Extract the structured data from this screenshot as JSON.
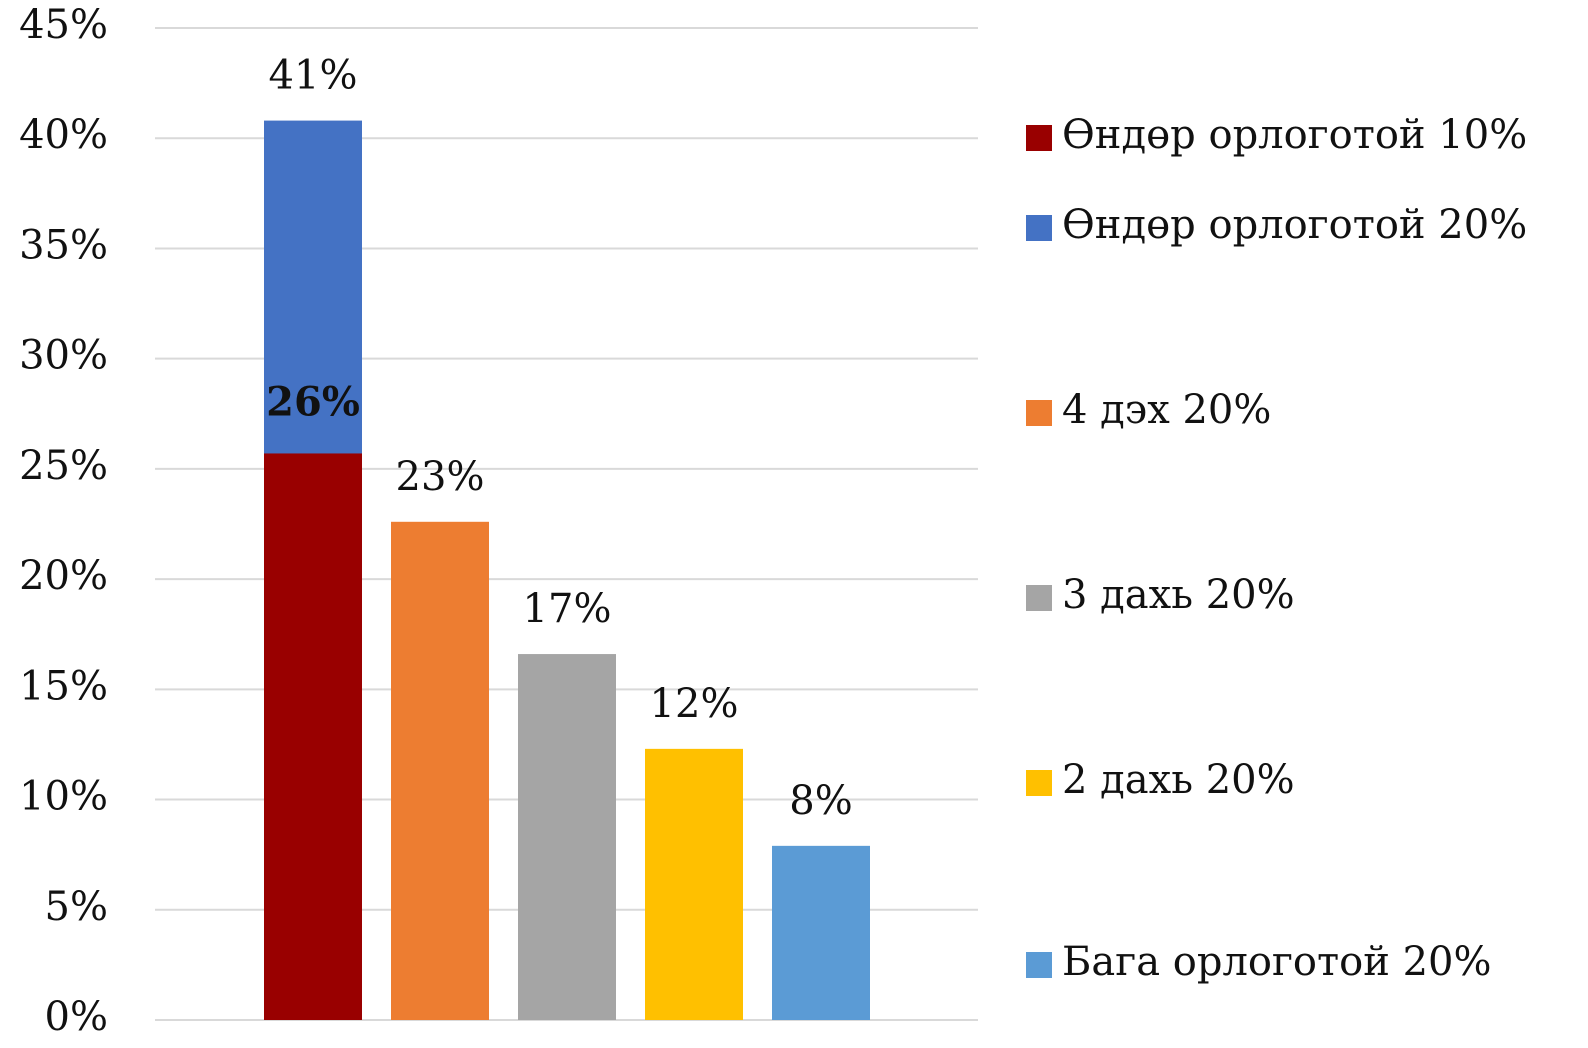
{
  "chart_data": {
    "type": "bar",
    "categories": [
      null,
      null,
      null,
      null,
      null
    ],
    "series": [
      {
        "name": "Өндөр орлоготой 10%",
        "color": "#990000",
        "values": [
          25.7,
          null,
          null,
          null,
          null
        ],
        "value_labels": [
          "26%",
          null,
          null,
          null,
          null
        ]
      },
      {
        "name": "Өндөр орлоготой 20%",
        "color": "#4472c4",
        "values": [
          40.8,
          null,
          null,
          null,
          null
        ],
        "value_labels": [
          "41%",
          null,
          null,
          null,
          null
        ]
      },
      {
        "name": "4 дэх 20%",
        "color": "#ed7d31",
        "values": [
          null,
          22.6,
          null,
          null,
          null
        ],
        "value_labels": [
          null,
          "23%",
          null,
          null,
          null
        ]
      },
      {
        "name": "3 дахь 20%",
        "color": "#a5a5a5",
        "values": [
          null,
          null,
          16.6,
          null,
          null
        ],
        "value_labels": [
          null,
          null,
          "17%",
          null,
          null
        ]
      },
      {
        "name": "2 дахь 20%",
        "color": "#ffc000",
        "values": [
          null,
          null,
          null,
          12.3,
          null
        ],
        "value_labels": [
          null,
          null,
          null,
          "12%",
          null
        ]
      },
      {
        "name": "Бага орлоготой 20%",
        "color": "#5b9bd5",
        "values": [
          null,
          null,
          null,
          null,
          7.9
        ],
        "value_labels": [
          null,
          null,
          null,
          null,
          "8%"
        ]
      }
    ],
    "ylim": [
      0,
      45
    ],
    "yticks": [
      {
        "value": 0,
        "label": "0%"
      },
      {
        "value": 5,
        "label": "5%"
      },
      {
        "value": 10,
        "label": "10%"
      },
      {
        "value": 15,
        "label": "15%"
      },
      {
        "value": 20,
        "label": "20%"
      },
      {
        "value": 25,
        "label": "25%"
      },
      {
        "value": 30,
        "label": "30%"
      },
      {
        "value": 35,
        "label": "35%"
      },
      {
        "value": 40,
        "label": "40%"
      },
      {
        "value": 45,
        "label": "45%"
      }
    ],
    "grid": true,
    "legend": "right"
  }
}
